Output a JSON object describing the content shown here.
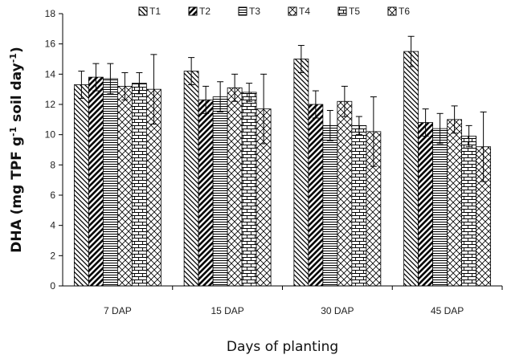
{
  "chart_data": {
    "type": "bar",
    "categories": [
      "7 DAP",
      "15 DAP",
      "30 DAP",
      "45 DAP"
    ],
    "series": [
      {
        "name": "T1",
        "pattern": "diag-back",
        "values": [
          13.3,
          14.2,
          15.0,
          15.5
        ],
        "errors": [
          0.9,
          0.9,
          0.9,
          1.0
        ]
      },
      {
        "name": "T2",
        "pattern": "diag-fwd",
        "values": [
          13.8,
          12.3,
          12.0,
          10.8
        ],
        "errors": [
          0.9,
          0.9,
          0.9,
          0.9
        ]
      },
      {
        "name": "T3",
        "pattern": "horizontal",
        "values": [
          13.7,
          12.5,
          10.6,
          10.4
        ],
        "errors": [
          1.0,
          1.0,
          1.0,
          1.0
        ]
      },
      {
        "name": "T4",
        "pattern": "diamond",
        "values": [
          13.2,
          13.1,
          12.2,
          11.0
        ],
        "errors": [
          0.9,
          0.9,
          1.0,
          0.9
        ]
      },
      {
        "name": "T5",
        "pattern": "brick",
        "values": [
          13.4,
          12.8,
          10.6,
          9.9
        ],
        "errors": [
          0.7,
          0.6,
          0.6,
          0.7
        ]
      },
      {
        "name": "T6",
        "pattern": "diamond",
        "values": [
          13.0,
          11.7,
          10.2,
          9.2
        ],
        "errors": [
          2.3,
          2.3,
          2.3,
          2.3
        ]
      }
    ],
    "title": "",
    "xlabel": "Days of planting",
    "ylabel": "DHA (mg TPF g",
    "ylabel_sup1": "-1",
    "ylabel_mid": " soil day",
    "ylabel_sup2": "-1",
    "ylabel_end": ")",
    "ylim": [
      0,
      18
    ],
    "yticks": [
      0,
      2,
      4,
      6,
      8,
      10,
      12,
      14,
      16,
      18
    ],
    "grid": false,
    "legend_position": "top",
    "legend_colors": {
      "stroke": "#000000",
      "fill": "#ffffff"
    }
  }
}
